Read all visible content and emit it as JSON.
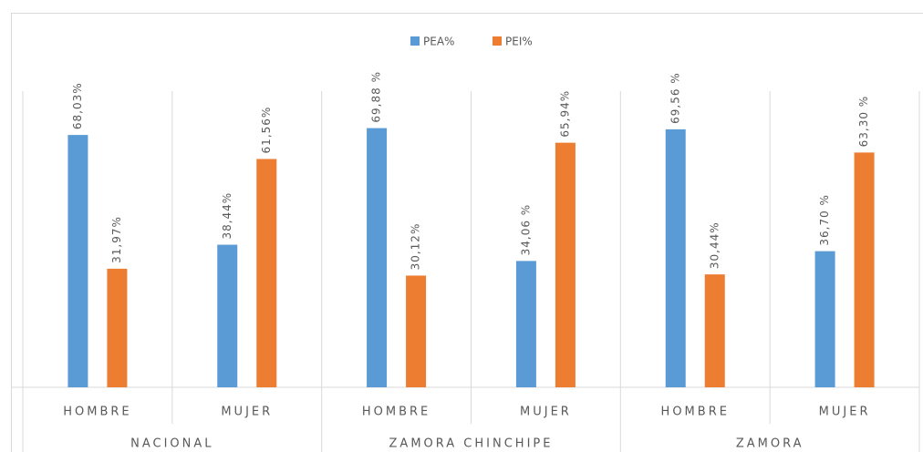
{
  "chart_data": {
    "type": "bar",
    "categories": [
      "HOMBRE",
      "MUJER",
      "HOMBRE",
      "MUJER",
      "HOMBRE",
      "MUJER"
    ],
    "groups": [
      "NACIONAL",
      "ZAMORA CHINCHIPE",
      "ZAMORA"
    ],
    "legend": "top",
    "series": [
      {
        "name": "PEA%",
        "color": "#5b9bd5",
        "values": [
          68.03,
          38.44,
          69.88,
          34.06,
          69.56,
          36.7
        ],
        "value_labels": [
          "68,03%",
          "38,44%",
          "69,88 %",
          "34,06 %",
          "69,56 %",
          "36,70 %"
        ]
      },
      {
        "name": "PEI%",
        "color": "#ed7d31",
        "values": [
          31.97,
          61.56,
          30.12,
          65.94,
          30.44,
          63.3
        ],
        "value_labels": [
          "31,97%",
          "61,56%",
          "30,12%",
          "65,94%",
          "30,44%",
          "63,30 %"
        ]
      }
    ]
  }
}
